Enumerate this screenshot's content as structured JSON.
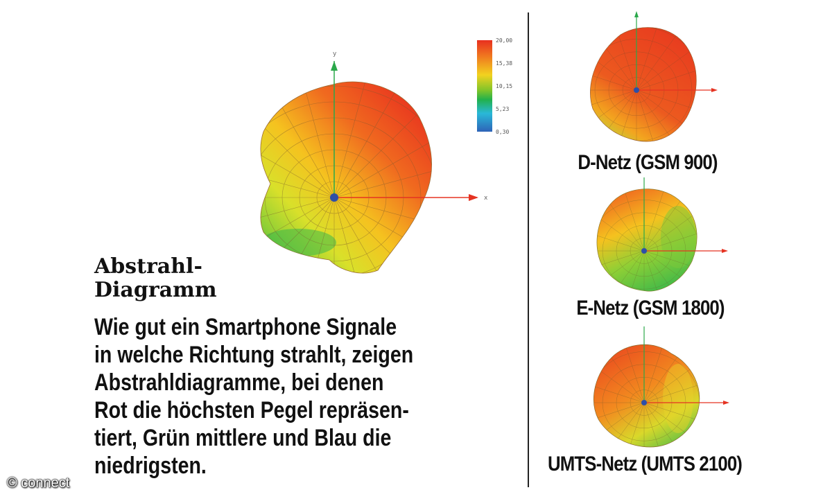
{
  "colors": {
    "red": "#e8301f",
    "orange": "#f07a1f",
    "yellow": "#f2d21f",
    "green": "#22b14c",
    "cyan": "#29b8d8",
    "blue": "#2e63b8",
    "axis_red": "#e53322",
    "axis_green": "#2aa84a"
  },
  "legend": {
    "ticks": [
      "20,00",
      "15,38",
      "10,15",
      "5,23",
      "0,30"
    ]
  },
  "main_figure": {
    "axis_y_label": "y",
    "axis_x_label": "x"
  },
  "title": {
    "line1": "Abstrahl-",
    "line2": "Diagramm"
  },
  "body": {
    "lines": [
      "Wie gut ein Smartphone Signale",
      "in welche Richtung strahlt, zeigen",
      "Abstrahldiagramme, bei denen",
      "Rot die höchsten Pegel repräsen-",
      "tiert, Grün mittlere und Blau die",
      "niedrigsten."
    ]
  },
  "panels": [
    {
      "label": "D-Netz (GSM 900)"
    },
    {
      "label": "E-Netz (GSM 1800)"
    },
    {
      "label": "UMTS-Netz (UMTS 2100)"
    }
  ],
  "copyright": "© connect"
}
